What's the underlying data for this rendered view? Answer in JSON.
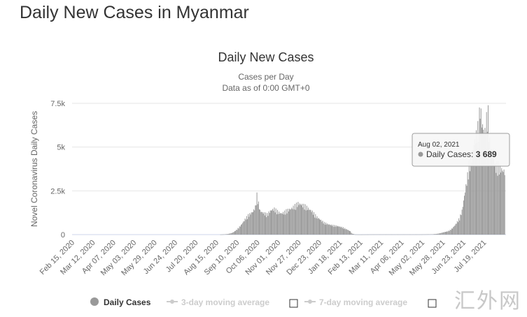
{
  "page": {
    "title": "Daily New Cases in Myanmar"
  },
  "chart_data": {
    "type": "bar",
    "title": "Daily New Cases",
    "subtitle_lines": [
      "Cases per Day",
      "Data as of 0:00 GMT+0"
    ],
    "ylabel": "Novel Coronavirus Daily Cases",
    "ylim": [
      0,
      7500
    ],
    "y_ticks": [
      0,
      2500,
      5000,
      7500
    ],
    "y_tick_labels": [
      "0",
      "2.5k",
      "5k",
      "7.5k"
    ],
    "x_range": [
      "2020-02-15",
      "2021-08-16"
    ],
    "x_ticks": [
      "2020-02-15",
      "2020-03-12",
      "2020-04-07",
      "2020-05-03",
      "2020-05-29",
      "2020-06-24",
      "2020-07-20",
      "2020-08-15",
      "2020-09-10",
      "2020-10-06",
      "2020-11-01",
      "2020-11-27",
      "2020-12-23",
      "2021-01-18",
      "2021-02-13",
      "2021-03-11",
      "2021-04-06",
      "2021-05-02",
      "2021-05-28",
      "2021-06-23",
      "2021-07-19"
    ],
    "x_tick_labels": [
      "Feb 15, 2020",
      "Mar 12, 2020",
      "Apr 07, 2020",
      "May 03, 2020",
      "May 29, 2020",
      "Jun 24, 2020",
      "Jul 20, 2020",
      "Aug 15, 2020",
      "Sep 10, 2020",
      "Oct 06, 2020",
      "Nov 01, 2020",
      "Nov 27, 2020",
      "Dec 23, 2020",
      "Jan 18, 2021",
      "Feb 13, 2021",
      "Mar 11, 2021",
      "Apr 06, 2021",
      "May 02, 2021",
      "May 28, 2021",
      "Jun 23, 2021",
      "Jul 19, 2021"
    ],
    "grid": true,
    "series": [
      {
        "name": "Daily Cases",
        "color": "#999999",
        "points": [
          [
            "2020-08-20",
            5
          ],
          [
            "2020-08-25",
            15
          ],
          [
            "2020-08-30",
            40
          ],
          [
            "2020-09-03",
            80
          ],
          [
            "2020-09-06",
            150
          ],
          [
            "2020-09-09",
            250
          ],
          [
            "2020-09-12",
            380
          ],
          [
            "2020-09-15",
            520
          ],
          [
            "2020-09-18",
            700
          ],
          [
            "2020-09-21",
            900
          ],
          [
            "2020-09-24",
            1050
          ],
          [
            "2020-09-27",
            1150
          ],
          [
            "2020-09-30",
            1250
          ],
          [
            "2020-10-03",
            1500
          ],
          [
            "2020-10-05",
            2150
          ],
          [
            "2020-10-07",
            1700
          ],
          [
            "2020-10-09",
            1300
          ],
          [
            "2020-10-12",
            1200
          ],
          [
            "2020-10-15",
            1150
          ],
          [
            "2020-10-18",
            1100
          ],
          [
            "2020-10-21",
            1250
          ],
          [
            "2020-10-24",
            1350
          ],
          [
            "2020-10-27",
            1400
          ],
          [
            "2020-10-30",
            1300
          ],
          [
            "2020-11-02",
            1200
          ],
          [
            "2020-11-05",
            1150
          ],
          [
            "2020-11-08",
            1200
          ],
          [
            "2020-11-11",
            1300
          ],
          [
            "2020-11-14",
            1350
          ],
          [
            "2020-11-17",
            1400
          ],
          [
            "2020-11-20",
            1500
          ],
          [
            "2020-11-23",
            1600
          ],
          [
            "2020-11-26",
            1700
          ],
          [
            "2020-11-29",
            1650
          ],
          [
            "2020-12-02",
            1600
          ],
          [
            "2020-12-05",
            1550
          ],
          [
            "2020-12-08",
            1450
          ],
          [
            "2020-12-11",
            1350
          ],
          [
            "2020-12-14",
            1250
          ],
          [
            "2020-12-17",
            1100
          ],
          [
            "2020-12-20",
            950
          ],
          [
            "2020-12-23",
            850
          ],
          [
            "2020-12-26",
            750
          ],
          [
            "2020-12-29",
            650
          ],
          [
            "2021-01-01",
            600
          ],
          [
            "2021-01-04",
            550
          ],
          [
            "2021-01-07",
            520
          ],
          [
            "2021-01-10",
            500
          ],
          [
            "2021-01-13",
            480
          ],
          [
            "2021-01-16",
            450
          ],
          [
            "2021-01-19",
            420
          ],
          [
            "2021-01-22",
            380
          ],
          [
            "2021-01-25",
            320
          ],
          [
            "2021-01-28",
            250
          ],
          [
            "2021-01-31",
            180
          ],
          [
            "2021-02-02",
            60
          ],
          [
            "2021-02-06",
            10
          ],
          [
            "2021-02-12",
            5
          ],
          [
            "2021-03-01",
            10
          ],
          [
            "2021-04-01",
            10
          ],
          [
            "2021-05-01",
            10
          ],
          [
            "2021-05-15",
            20
          ],
          [
            "2021-05-20",
            40
          ],
          [
            "2021-05-25",
            80
          ],
          [
            "2021-05-28",
            120
          ],
          [
            "2021-05-31",
            150
          ],
          [
            "2021-06-03",
            180
          ],
          [
            "2021-06-06",
            250
          ],
          [
            "2021-06-09",
            350
          ],
          [
            "2021-06-12",
            500
          ],
          [
            "2021-06-15",
            700
          ],
          [
            "2021-06-18",
            900
          ],
          [
            "2021-06-21",
            1300
          ],
          [
            "2021-06-24",
            2100
          ],
          [
            "2021-06-27",
            2900
          ],
          [
            "2021-06-30",
            3800
          ],
          [
            "2021-07-03",
            4200
          ],
          [
            "2021-07-06",
            4900
          ],
          [
            "2021-07-09",
            5400
          ],
          [
            "2021-07-12",
            6000
          ],
          [
            "2021-07-14",
            7000
          ],
          [
            "2021-07-16",
            6100
          ],
          [
            "2021-07-18",
            5700
          ],
          [
            "2021-07-20",
            5600
          ],
          [
            "2021-07-22",
            6300
          ],
          [
            "2021-07-24",
            6600
          ],
          [
            "2021-07-26",
            5000
          ],
          [
            "2021-07-28",
            4500
          ],
          [
            "2021-07-30",
            4600
          ],
          [
            "2021-08-02",
            3689
          ],
          [
            "2021-08-05",
            3800
          ],
          [
            "2021-08-08",
            3600
          ],
          [
            "2021-08-11",
            3500
          ],
          [
            "2021-08-14",
            3400
          ]
        ]
      }
    ],
    "tooltip": {
      "date": "Aug 02, 2021",
      "label": "Daily Cases",
      "value": "3 689"
    },
    "legend": {
      "placement": "bottom",
      "items": [
        {
          "name": "Daily Cases",
          "active": true
        },
        {
          "name": "3-day moving average",
          "active": false
        },
        {
          "name": "7-day moving average",
          "active": false
        }
      ]
    }
  },
  "watermark": "汇外网"
}
